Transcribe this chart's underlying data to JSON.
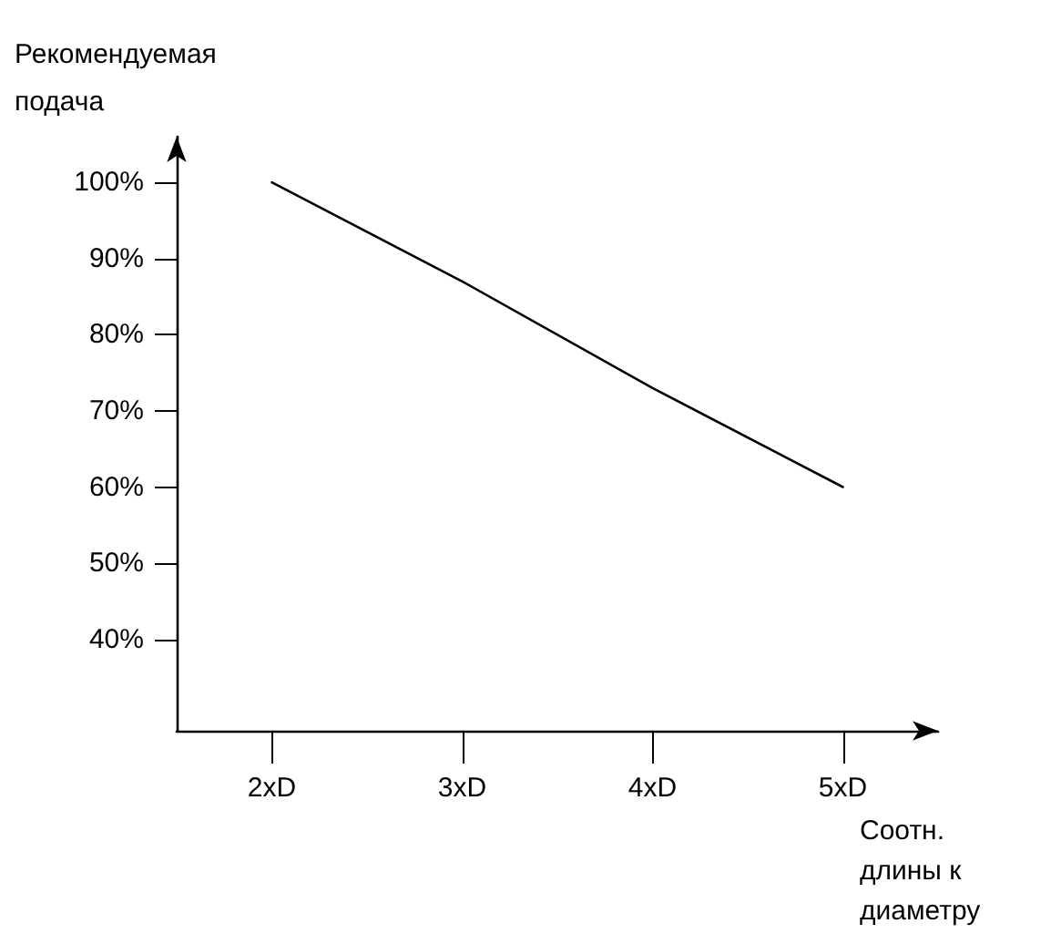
{
  "chart_data": {
    "type": "line",
    "ylabel": "Рекомендуемая\nподача",
    "xlabel": "Соотн.\nдлины к\nдиаметру",
    "categories": [
      "2xD",
      "3xD",
      "4xD",
      "5xD"
    ],
    "series": [
      {
        "color": "#000000",
        "values": [
          100,
          87,
          73,
          60
        ]
      }
    ],
    "ylim": [
      28,
      106
    ],
    "yticks": [
      {
        "value": 40,
        "label": "40%"
      },
      {
        "value": 50,
        "label": "50%"
      },
      {
        "value": 60,
        "label": "60%"
      },
      {
        "value": 70,
        "label": "70%"
      },
      {
        "value": 80,
        "label": "80%"
      },
      {
        "value": 90,
        "label": "90%"
      },
      {
        "value": 100,
        "label": "100%"
      }
    ],
    "grid": false,
    "marker": "none",
    "line_style": "solid"
  }
}
